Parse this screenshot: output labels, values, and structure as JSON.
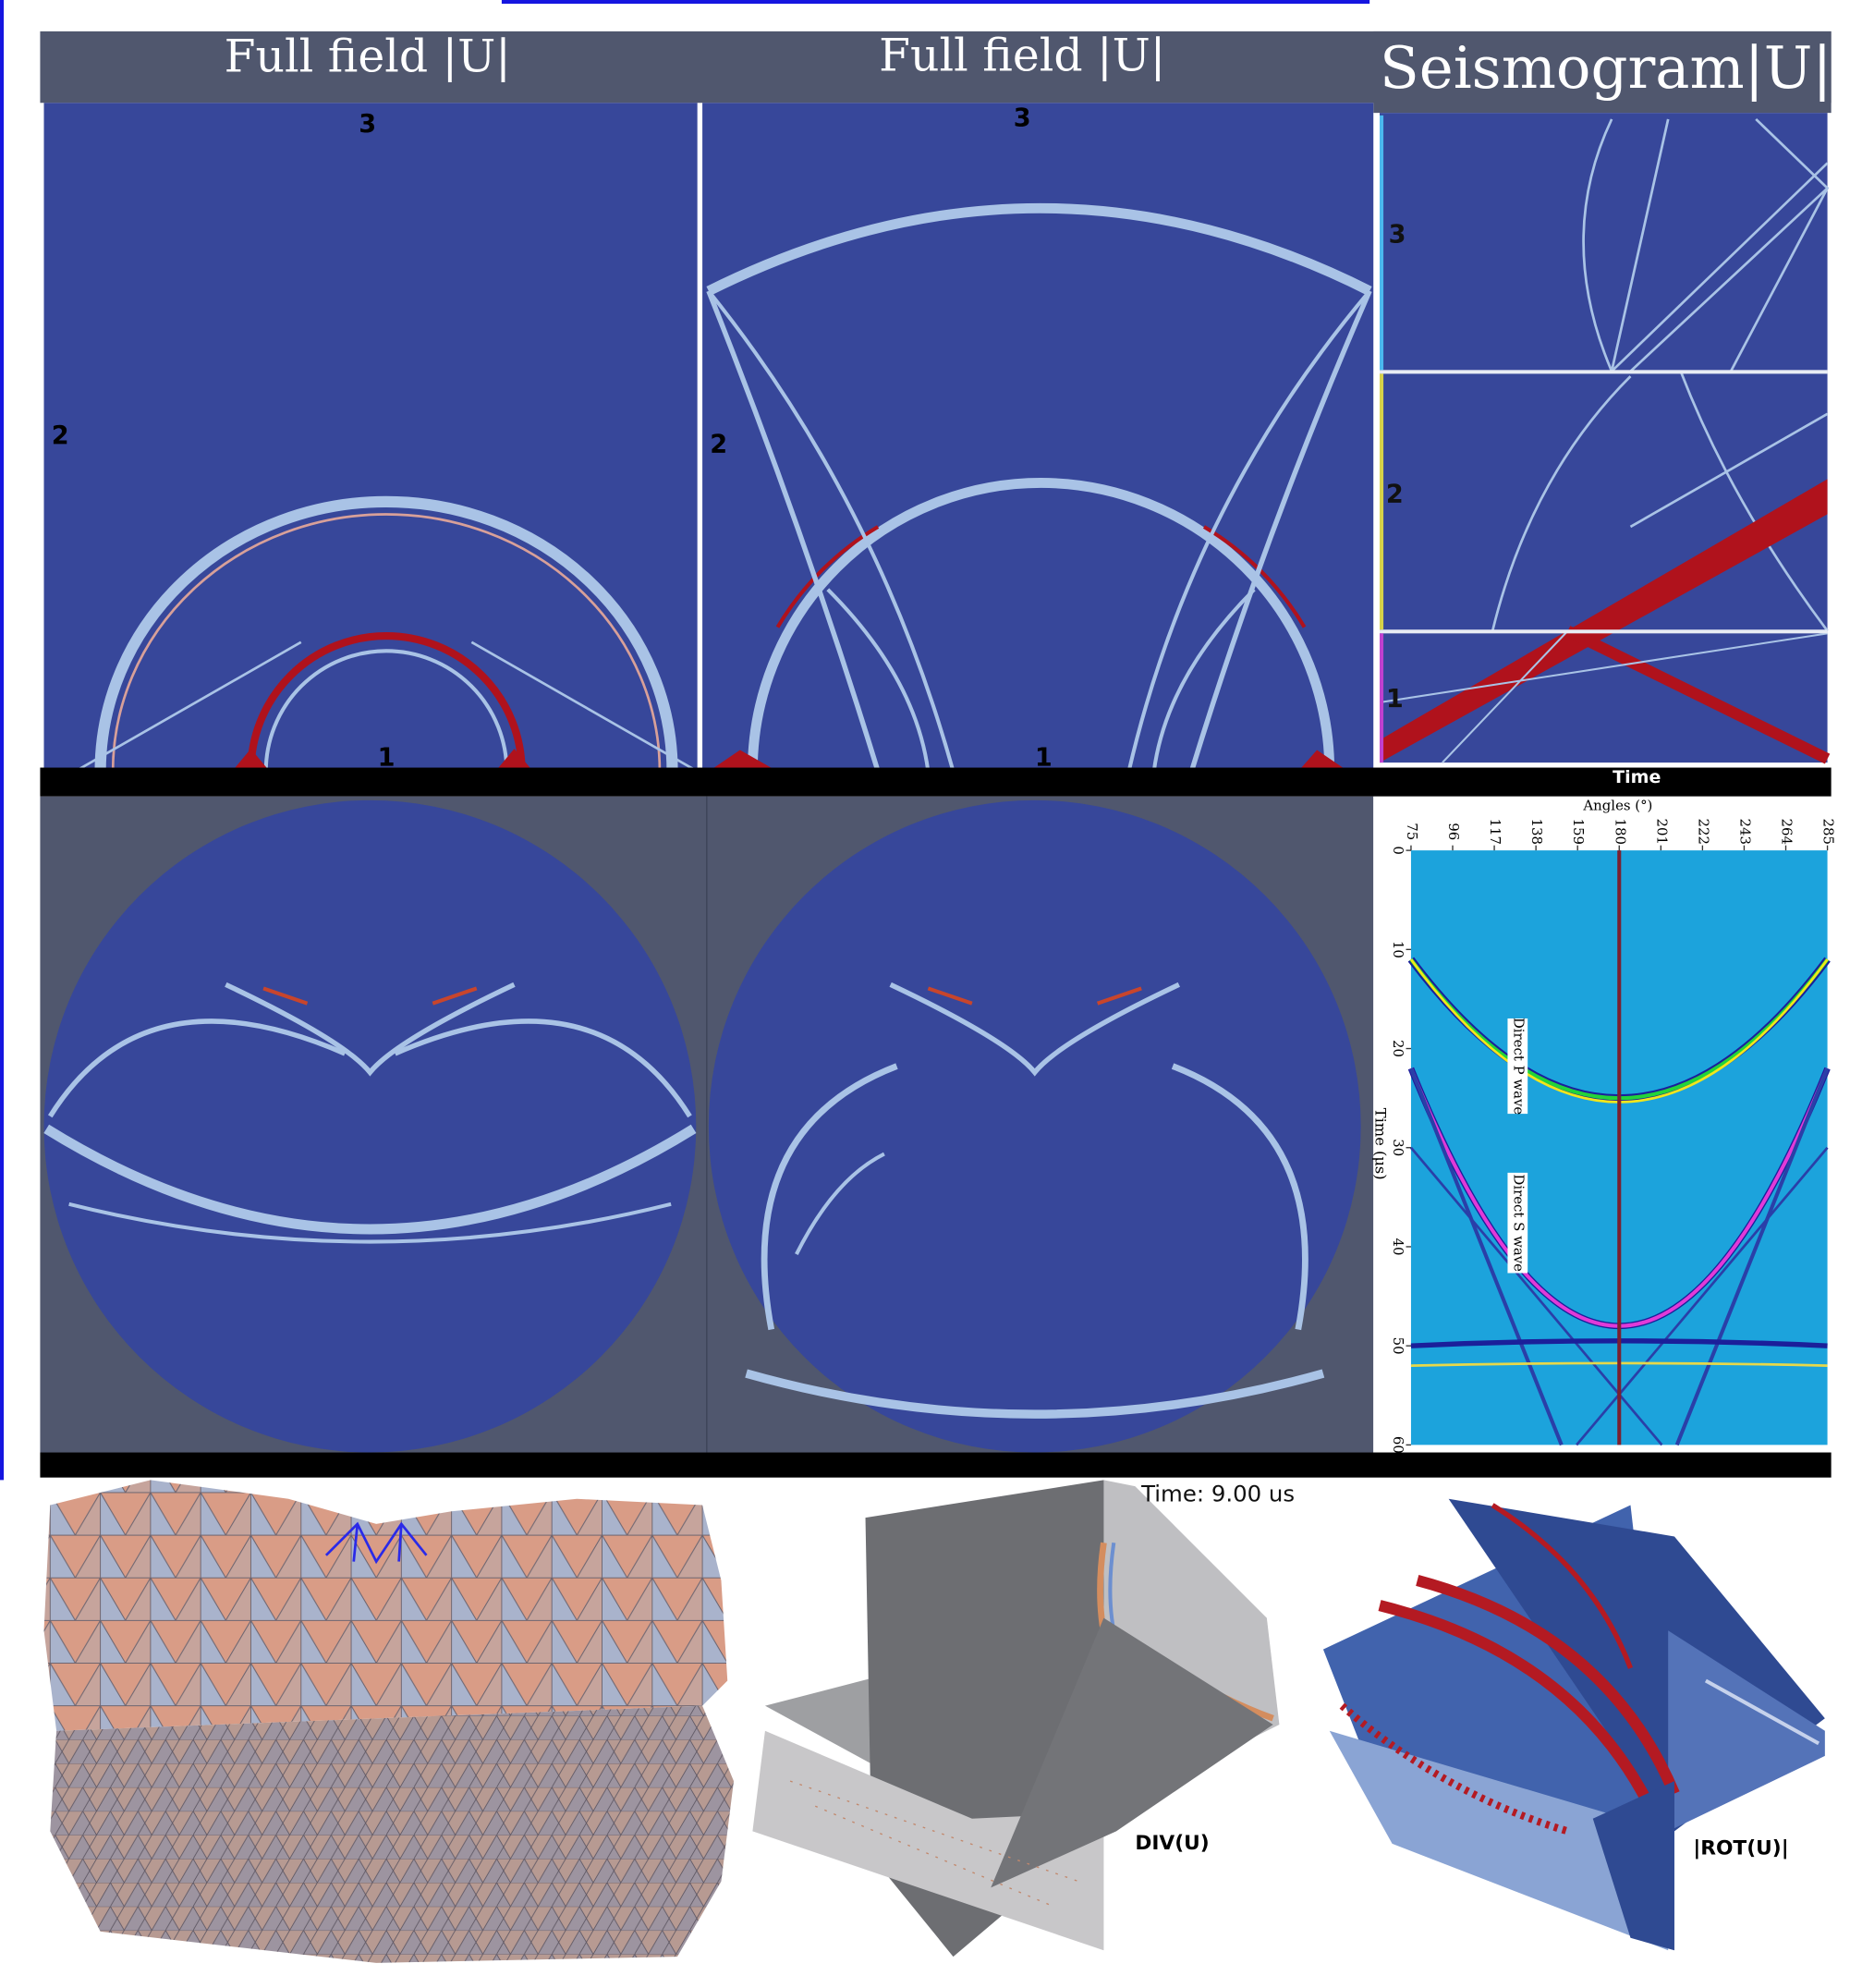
{
  "panels": {
    "full_field_left": {
      "title": "Full field |U|",
      "labels": [
        "3",
        "2",
        "1"
      ]
    },
    "full_field_right": {
      "title": "Full field |U|",
      "labels": [
        "3",
        "2",
        "1"
      ]
    },
    "seismogram": {
      "title": "Seismogram|U|",
      "labels": [
        "3",
        "2",
        "1"
      ],
      "x_label": "Time"
    }
  },
  "angle_plot": {
    "x_label": "Angles (°)",
    "x_ticks": [
      75,
      96,
      117,
      138,
      159,
      180,
      201,
      222,
      243,
      264,
      285
    ],
    "y_label": "Time (μs)",
    "y_ticks": [
      0,
      10,
      20,
      30,
      40,
      50,
      60
    ],
    "annotations": [
      "Direct P wave",
      "Direct S wave"
    ]
  },
  "views": {
    "time": "Time: 9.00 us",
    "div_label": "DIV(U)",
    "rot_label": "|ROT(U)|"
  }
}
